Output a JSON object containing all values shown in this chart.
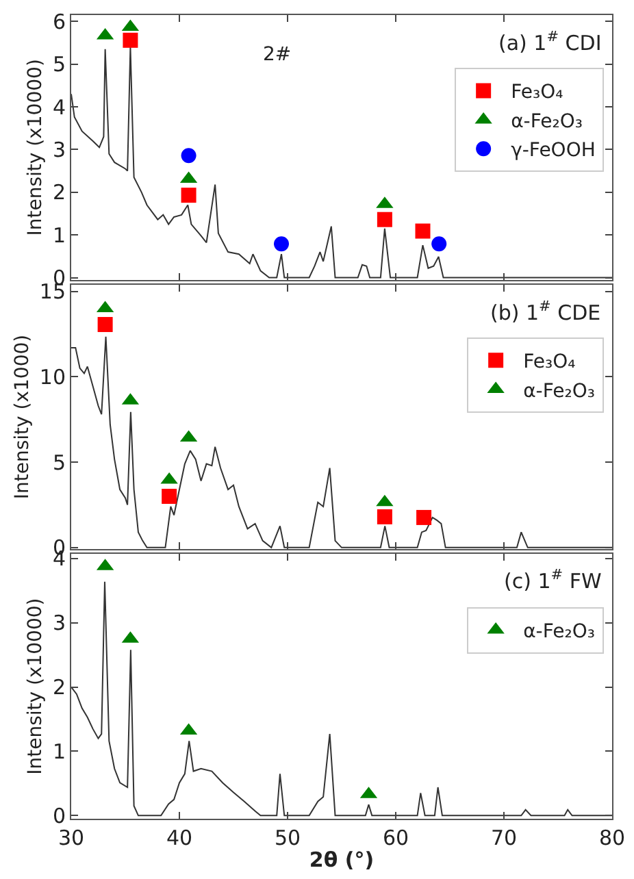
{
  "chart_data": [
    {
      "type": "line",
      "title": "(a) 1$^{#}$ CDI",
      "ylabel": "Intensity (x10000)",
      "annotations": [
        "2#"
      ],
      "xlim": [
        30,
        80
      ],
      "xticks": [
        30,
        40,
        50,
        60,
        70,
        80
      ],
      "ylim": [
        -0.05,
        6.15
      ],
      "yticks": [
        0,
        1,
        2,
        3,
        4,
        5,
        6
      ],
      "tick_labels": "y",
      "legend": "top right",
      "series": [
        {
          "color": "#333333",
          "marker": "none",
          "x": [
            30,
            30.3,
            31,
            32,
            32.6,
            33.0,
            33.14,
            33.5,
            34,
            35,
            35.2,
            35.47,
            35.8,
            36.5,
            37,
            38,
            38.5,
            39,
            39.5,
            40.2,
            40.78,
            41.1,
            42,
            42.5,
            43.3,
            43.6,
            44.5,
            45.5,
            46.5,
            46.8,
            47.5,
            48.3,
            49.0,
            49.43,
            49.7,
            52,
            52.5,
            53,
            53.3,
            54.04,
            54.4,
            56.5,
            56.9,
            57.3,
            57.6,
            58.6,
            58.98,
            59.5,
            62,
            62.5,
            63,
            63.5,
            63.96,
            64.4,
            80
          ],
          "values": [
            4.3,
            3.76,
            3.43,
            3.2,
            3.05,
            3.3,
            5.35,
            2.9,
            2.7,
            2.55,
            2.5,
            5.4,
            2.35,
            2.0,
            1.7,
            1.36,
            1.47,
            1.25,
            1.42,
            1.47,
            1.7,
            1.25,
            0.98,
            0.82,
            2.18,
            1.04,
            0.6,
            0.55,
            0.33,
            0.55,
            0.16,
            0,
            0,
            0.55,
            0,
            0,
            0.27,
            0.6,
            0.38,
            1.2,
            0,
            0,
            0.3,
            0.27,
            0,
            0,
            1.15,
            0,
            0,
            0.76,
            0.22,
            0.27,
            0.49,
            0,
            0
          ]
        },
        {
          "type": "scatter",
          "name": "Fe₃O₄",
          "color": "#ff0000",
          "marker": "square",
          "x": [
            35.47,
            40.86,
            58.98,
            62.5
          ],
          "values": [
            5.56,
            1.93,
            1.36,
            1.09
          ]
        },
        {
          "type": "scatter",
          "name": "α-Fe₂O₃",
          "color": "#008000",
          "marker": "triangle",
          "x": [
            33.14,
            35.47,
            40.86,
            58.98
          ],
          "values": [
            5.67,
            5.87,
            2.31,
            1.72
          ]
        },
        {
          "type": "scatter",
          "name": "γ-FeOOH",
          "color": "#0000ff",
          "marker": "circle",
          "x": [
            40.86,
            49.43,
            64.0
          ],
          "values": [
            2.86,
            0.79,
            0.79
          ]
        }
      ]
    },
    {
      "type": "line",
      "title": "(b) 1$^{#}$ CDE",
      "ylabel": "Intensity (x1000)",
      "xlim": [
        30,
        80
      ],
      "xticks": [
        30,
        40,
        50,
        60,
        70,
        80
      ],
      "ylim": [
        -0.1,
        15.4
      ],
      "yticks": [
        0,
        5,
        10,
        15
      ],
      "tick_labels": "y",
      "legend": "top right",
      "series": [
        {
          "color": "#333333",
          "marker": "none",
          "x": [
            30,
            30.4,
            30.8,
            31.2,
            31.5,
            32,
            32.5,
            32.8,
            33.2,
            33.6,
            34,
            34.5,
            35,
            35.2,
            35.5,
            35.8,
            36.2,
            36.6,
            37,
            38.7,
            39.2,
            39.5,
            40,
            40.5,
            41,
            41.5,
            42.0,
            42.5,
            43,
            43.3,
            43.8,
            44.5,
            45,
            45.5,
            46.3,
            47,
            47.7,
            48.5,
            49.3,
            49.7,
            52,
            52.8,
            53.3,
            53.9,
            54.4,
            55,
            58.6,
            59,
            59.4,
            62,
            62.4,
            62.8,
            63.4,
            63.8,
            64.2,
            64.6,
            71.2,
            71.6,
            72.2,
            80
          ],
          "values": [
            11.7,
            11.7,
            10.5,
            10.2,
            10.6,
            9.45,
            8.3,
            7.8,
            12.35,
            7.2,
            5.17,
            3.4,
            2.9,
            2.5,
            7.94,
            3.4,
            0.9,
            0.4,
            0,
            0,
            2.4,
            1.9,
            3.4,
            4.9,
            5.67,
            5.17,
            3.9,
            4.9,
            4.8,
            5.9,
            4.66,
            3.4,
            3.65,
            2.4,
            1.1,
            1.4,
            0.4,
            0,
            1.26,
            0,
            0,
            2.65,
            2.4,
            4.66,
            0.4,
            0,
            0,
            1.26,
            0,
            0,
            0.9,
            1.0,
            1.76,
            1.6,
            1.4,
            0,
            0,
            0.9,
            0,
            0
          ]
        },
        {
          "type": "scatter",
          "name": "Fe₃O₄",
          "color": "#ff0000",
          "marker": "square",
          "x": [
            33.14,
            39.06,
            58.98,
            62.6
          ],
          "values": [
            13.06,
            3.0,
            1.8,
            1.76
          ]
        },
        {
          "type": "scatter",
          "name": "α-Fe₂O₃",
          "color": "#008000",
          "marker": "triangle",
          "x": [
            33.14,
            35.47,
            39.06,
            40.86,
            58.98
          ],
          "values": [
            14.0,
            8.6,
            3.96,
            6.43,
            2.65
          ]
        }
      ]
    },
    {
      "type": "line",
      "title": "(c) 1$^{#}$ FW",
      "ylabel": "Intensity (x10000)",
      "xlabel": "2θ (°)",
      "xlim": [
        30,
        80
      ],
      "xticks": [
        30,
        40,
        50,
        60,
        70,
        80
      ],
      "ylim": [
        -0.05,
        4.07
      ],
      "yticks": [
        0,
        1,
        2,
        3,
        4
      ],
      "legend": "top right",
      "series": [
        {
          "color": "#333333",
          "marker": "none",
          "x": [
            30,
            30.5,
            31,
            31.5,
            32,
            32.5,
            32.8,
            33.1,
            33.5,
            34,
            34.5,
            35.2,
            35.5,
            35.8,
            36.2,
            38.3,
            39,
            39.5,
            40,
            40.5,
            40.9,
            41.3,
            42,
            43,
            44,
            45,
            46,
            47,
            47.5,
            49,
            49.3,
            49.7,
            52,
            52.8,
            53.3,
            53.9,
            54.4,
            57.2,
            57.5,
            57.8,
            62,
            62.3,
            62.7,
            63.6,
            63.9,
            64.3,
            71.6,
            72,
            72.5,
            75.6,
            75.9,
            76.3,
            80
          ],
          "values": [
            2.0,
            1.89,
            1.67,
            1.53,
            1.35,
            1.2,
            1.27,
            3.64,
            1.16,
            0.73,
            0.51,
            0.44,
            2.58,
            0.15,
            0,
            0,
            0.18,
            0.25,
            0.51,
            0.65,
            1.16,
            0.69,
            0.73,
            0.69,
            0.51,
            0.36,
            0.22,
            0.07,
            0,
            0,
            0.65,
            0,
            0,
            0.22,
            0.29,
            1.27,
            0,
            0,
            0.17,
            0,
            0,
            0.35,
            0,
            0,
            0.44,
            0,
            0,
            0.09,
            0,
            0,
            0.09,
            0,
            0
          ]
        },
        {
          "type": "scatter",
          "name": "α-Fe₂O₃",
          "color": "#008000",
          "marker": "triangle",
          "x": [
            33.14,
            35.47,
            40.86,
            57.5
          ],
          "values": [
            3.88,
            2.75,
            1.32,
            0.33
          ]
        }
      ]
    }
  ]
}
